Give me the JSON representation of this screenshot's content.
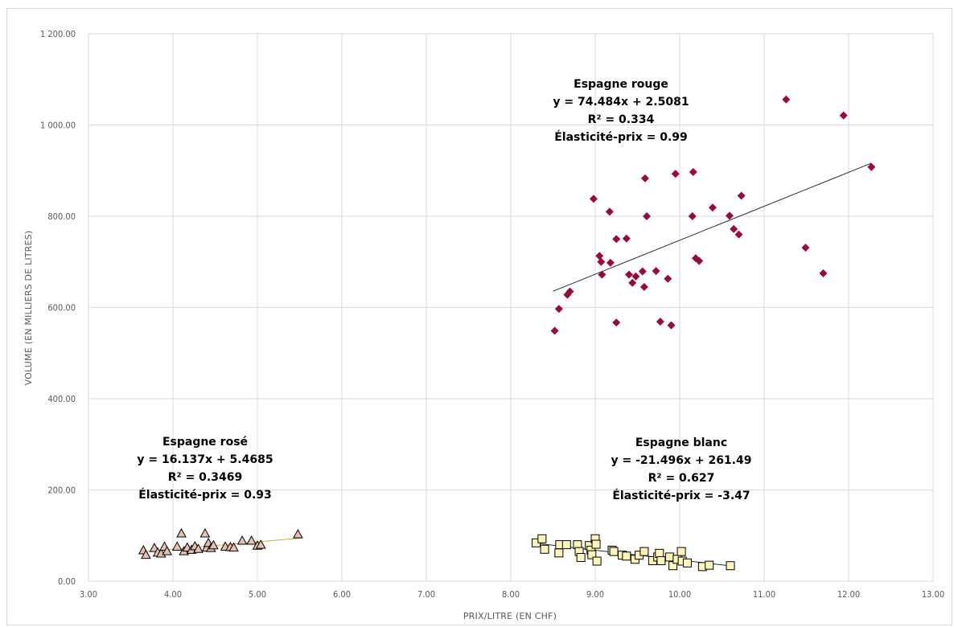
{
  "chart_data": {
    "type": "scatter",
    "xlabel": "PRIX/LITRE (EN CHF)",
    "ylabel": "VOLUME (EN MILLIERS DE LITRES)",
    "xlim": [
      3,
      13
    ],
    "ylim": [
      0,
      1200
    ],
    "xticks": [
      "3.00",
      "4.00",
      "5.00",
      "6.00",
      "7.00",
      "8.00",
      "9.00",
      "10.00",
      "11.00",
      "12.00",
      "13.00"
    ],
    "yticks": [
      "0.00",
      "200.00",
      "400.00",
      "600.00",
      "800.00",
      "1 000.00",
      "1 200.00"
    ],
    "xtick_values": [
      3,
      4,
      5,
      6,
      7,
      8,
      9,
      10,
      11,
      12,
      13
    ],
    "ytick_values": [
      0,
      200,
      400,
      600,
      800,
      1000,
      1200
    ],
    "grid": true,
    "series": [
      {
        "name": "Espagne rouge",
        "marker": "diamond",
        "color": "#9b0a37",
        "trend": {
          "slope": 74.484,
          "intercept": 2.5081,
          "x_range": [
            8.5,
            12.27
          ]
        },
        "annotation": [
          "Espagne rouge",
          "y = 74.484x  + 2.5081",
          "R² = 0.334",
          "Élasticité-prix = 0.99"
        ],
        "points": [
          [
            8.52,
            549
          ],
          [
            8.57,
            597
          ],
          [
            8.67,
            628
          ],
          [
            8.7,
            635
          ],
          [
            8.98,
            838
          ],
          [
            9.05,
            713
          ],
          [
            9.07,
            700
          ],
          [
            9.08,
            672
          ],
          [
            9.17,
            810
          ],
          [
            9.18,
            698
          ],
          [
            9.25,
            750
          ],
          [
            9.25,
            567
          ],
          [
            9.37,
            751
          ],
          [
            9.4,
            672
          ],
          [
            9.44,
            654
          ],
          [
            9.48,
            668
          ],
          [
            9.56,
            679
          ],
          [
            9.58,
            645
          ],
          [
            9.59,
            883
          ],
          [
            9.61,
            800
          ],
          [
            9.72,
            680
          ],
          [
            9.77,
            569
          ],
          [
            9.86,
            663
          ],
          [
            9.9,
            561
          ],
          [
            9.95,
            893
          ],
          [
            10.15,
            800
          ],
          [
            10.16,
            897
          ],
          [
            10.19,
            708
          ],
          [
            10.23,
            702
          ],
          [
            10.39,
            819
          ],
          [
            10.59,
            801
          ],
          [
            10.64,
            772
          ],
          [
            10.7,
            760
          ],
          [
            10.73,
            845
          ],
          [
            11.26,
            1056
          ],
          [
            11.49,
            731
          ],
          [
            11.7,
            675
          ],
          [
            11.94,
            1021
          ],
          [
            12.27,
            908
          ]
        ]
      },
      {
        "name": "Espagne rosé",
        "marker": "triangle",
        "color": "#e8c0b0",
        "trend": {
          "slope": 16.137,
          "intercept": 5.4685,
          "x_range": [
            3.65,
            5.5
          ]
        },
        "annotation": [
          "Espagne rosé",
          "y = 16.137x  + 5.4685",
          "R² = 0.3469",
          "Élasticité-prix = 0.93"
        ],
        "points": [
          [
            3.65,
            67
          ],
          [
            3.68,
            57
          ],
          [
            3.78,
            72
          ],
          [
            3.82,
            62
          ],
          [
            3.86,
            60
          ],
          [
            3.9,
            75
          ],
          [
            3.93,
            65
          ],
          [
            4.05,
            75
          ],
          [
            4.1,
            104
          ],
          [
            4.13,
            65
          ],
          [
            4.17,
            73
          ],
          [
            4.22,
            68
          ],
          [
            4.26,
            76
          ],
          [
            4.3,
            70
          ],
          [
            4.38,
            104
          ],
          [
            4.4,
            73
          ],
          [
            4.42,
            83
          ],
          [
            4.45,
            72
          ],
          [
            4.48,
            78
          ],
          [
            4.62,
            75
          ],
          [
            4.68,
            74
          ],
          [
            4.72,
            73
          ],
          [
            4.82,
            88
          ],
          [
            4.93,
            88
          ],
          [
            5.0,
            77
          ],
          [
            5.04,
            79
          ],
          [
            5.48,
            102
          ]
        ]
      },
      {
        "name": "Espagne blanc",
        "marker": "square",
        "color": "#fdf5b8",
        "trend": {
          "slope": -21.496,
          "intercept": 261.49,
          "x_range": [
            8.3,
            10.6
          ]
        },
        "annotation": [
          "Espagne blanc",
          "y = -21.496x  + 261.49",
          "R² = 0.627",
          "Élasticité-prix = -3.47"
        ],
        "points": [
          [
            8.3,
            84
          ],
          [
            8.37,
            93
          ],
          [
            8.4,
            70
          ],
          [
            8.57,
            62
          ],
          [
            8.58,
            80
          ],
          [
            8.66,
            80
          ],
          [
            8.79,
            80
          ],
          [
            8.81,
            65
          ],
          [
            8.83,
            52
          ],
          [
            8.93,
            78
          ],
          [
            8.95,
            68
          ],
          [
            8.96,
            58
          ],
          [
            9.0,
            93
          ],
          [
            9.01,
            81
          ],
          [
            9.02,
            44
          ],
          [
            9.2,
            68
          ],
          [
            9.22,
            65
          ],
          [
            9.32,
            57
          ],
          [
            9.37,
            55
          ],
          [
            9.47,
            48
          ],
          [
            9.52,
            57
          ],
          [
            9.58,
            65
          ],
          [
            9.68,
            45
          ],
          [
            9.74,
            53
          ],
          [
            9.76,
            61
          ],
          [
            9.78,
            45
          ],
          [
            9.88,
            53
          ],
          [
            9.92,
            34
          ],
          [
            9.97,
            48
          ],
          [
            10.02,
            65
          ],
          [
            10.03,
            44
          ],
          [
            10.09,
            40
          ],
          [
            10.27,
            32
          ],
          [
            10.35,
            35
          ],
          [
            10.6,
            34
          ]
        ]
      }
    ]
  }
}
